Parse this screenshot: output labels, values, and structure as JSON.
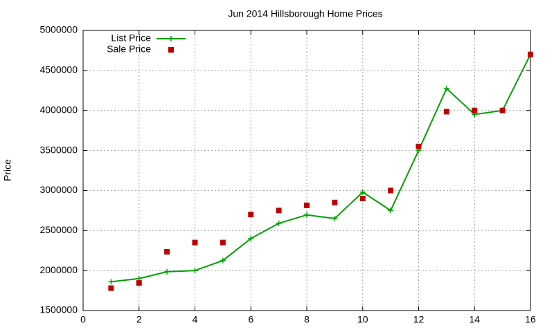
{
  "chart_data": {
    "type": "line",
    "title": "Jun 2014 Hillsborough Home Prices",
    "y_label": "Price",
    "x": [
      1,
      2,
      3,
      4,
      5,
      6,
      7,
      8,
      9,
      10,
      11,
      12,
      13,
      14,
      15,
      16
    ],
    "series": [
      {
        "name": "List Price",
        "color": "#00a000",
        "style": "line-points",
        "values": [
          1860000,
          1900000,
          1985000,
          2000000,
          2125000,
          2400000,
          2590000,
          2695000,
          2650000,
          2980000,
          2750000,
          3500000,
          4275000,
          3950000,
          4000000,
          4700000
        ]
      },
      {
        "name": "Sale Price",
        "color": "#c00000",
        "style": "points",
        "values": [
          1780000,
          1845000,
          2235000,
          2350000,
          2350000,
          2700000,
          2750000,
          2815000,
          2850000,
          2900000,
          3000000,
          3550000,
          3985000,
          4000000,
          4000000,
          4700000
        ]
      }
    ],
    "xlim": [
      0,
      16
    ],
    "xticks": [
      0,
      2,
      4,
      6,
      8,
      10,
      12,
      14,
      16
    ],
    "ylim": [
      1500000,
      5000000
    ],
    "yticks": [
      1500000,
      2000000,
      2500000,
      3000000,
      3500000,
      4000000,
      4500000,
      5000000
    ],
    "grid": true,
    "legend": "top-left"
  }
}
